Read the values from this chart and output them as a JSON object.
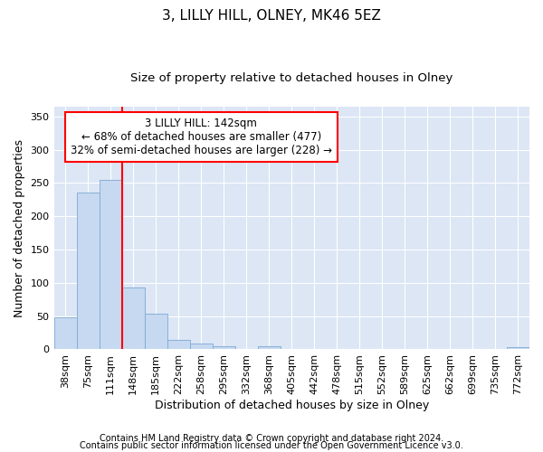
{
  "title": "3, LILLY HILL, OLNEY, MK46 5EZ",
  "subtitle": "Size of property relative to detached houses in Olney",
  "xlabel": "Distribution of detached houses by size in Olney",
  "ylabel": "Number of detached properties",
  "footnote1": "Contains HM Land Registry data © Crown copyright and database right 2024.",
  "footnote2": "Contains public sector information licensed under the Open Government Licence v3.0.",
  "bins": [
    "38sqm",
    "75sqm",
    "111sqm",
    "148sqm",
    "185sqm",
    "222sqm",
    "258sqm",
    "295sqm",
    "332sqm",
    "368sqm",
    "405sqm",
    "442sqm",
    "478sqm",
    "515sqm",
    "552sqm",
    "589sqm",
    "625sqm",
    "662sqm",
    "699sqm",
    "735sqm",
    "772sqm"
  ],
  "values": [
    48,
    235,
    255,
    93,
    53,
    14,
    9,
    5,
    0,
    5,
    0,
    0,
    0,
    0,
    0,
    0,
    0,
    0,
    0,
    0,
    3
  ],
  "bar_color": "#c6d9f0",
  "bar_edge_color": "#7da9d3",
  "vline_color": "red",
  "vline_x": 3,
  "annotation_text": "3 LILLY HILL: 142sqm\n← 68% of detached houses are smaller (477)\n32% of semi-detached houses are larger (228) →",
  "annotation_box_color": "white",
  "annotation_box_edge": "red",
  "ylim": [
    0,
    365
  ],
  "yticks": [
    0,
    50,
    100,
    150,
    200,
    250,
    300,
    350
  ],
  "plot_bg_color": "#dce6f5",
  "grid_color": "white",
  "title_fontsize": 11,
  "subtitle_fontsize": 9.5,
  "label_fontsize": 9,
  "tick_fontsize": 8,
  "annotation_fontsize": 8.5,
  "footnote_fontsize": 7
}
